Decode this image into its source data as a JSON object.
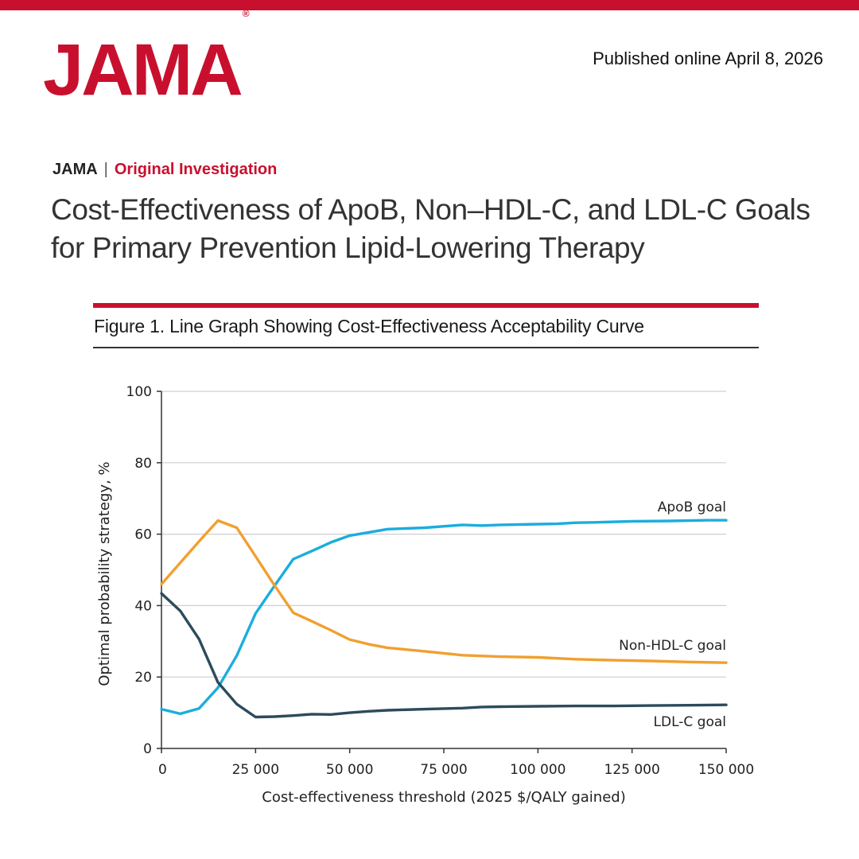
{
  "header": {
    "logo_text": "JAMA",
    "logo_mark": "®",
    "published": "Published online April 8, 2026",
    "brand_color": "#c8102e"
  },
  "article": {
    "journal": "JAMA",
    "separator": "|",
    "section": "Original Investigation",
    "title": "Cost-Effectiveness of ApoB, Non–HDL-C, and LDL-C Goals for Primary Prevention Lipid-Lowering Therapy"
  },
  "figure": {
    "caption": "Figure 1. Line Graph Showing Cost-Effectiveness Acceptability Curve"
  },
  "chart_data": {
    "type": "line",
    "title": "Line Graph Showing Cost-Effectiveness Acceptability Curve",
    "xlabel": "Cost-effectiveness threshold (2025 $/QALY gained)",
    "ylabel": "Optimal probability strategy, %",
    "xlim": [
      0,
      150000
    ],
    "ylim": [
      0,
      100
    ],
    "x_ticks": [
      0,
      25000,
      50000,
      75000,
      100000,
      125000,
      150000
    ],
    "x_tick_labels": [
      "0",
      "25 000",
      "50 000",
      "75 000",
      "100 000",
      "125 000",
      "150 000"
    ],
    "y_ticks": [
      0,
      20,
      40,
      60,
      80,
      100
    ],
    "y_tick_labels": [
      "0",
      "20",
      "40",
      "60",
      "80",
      "100"
    ],
    "grid": "horizontal",
    "series": [
      {
        "name": "ApoB goal",
        "color": "#1badde",
        "x": [
          0,
          5000,
          10000,
          15000,
          20000,
          25000,
          30000,
          35000,
          40000,
          45000,
          50000,
          55000,
          60000,
          70000,
          80000,
          85000,
          90000,
          100000,
          105000,
          110000,
          115000,
          125000,
          135000,
          145000,
          150000
        ],
        "values": [
          11,
          9.7,
          11.2,
          17,
          26,
          37.8,
          45.5,
          53,
          55.3,
          57.7,
          59.6,
          60.5,
          61.4,
          61.8,
          62.6,
          62.4,
          62.6,
          62.8,
          62.9,
          63.2,
          63.3,
          63.6,
          63.7,
          63.9,
          63.9
        ]
      },
      {
        "name": "Non-HDL-C goal",
        "color": "#f0a030",
        "x": [
          0,
          5000,
          10000,
          15000,
          20000,
          25000,
          30000,
          35000,
          40000,
          45000,
          50000,
          55000,
          60000,
          70000,
          80000,
          90000,
          100000,
          110000,
          120000,
          130000,
          140000,
          150000
        ],
        "values": [
          46,
          52,
          58,
          63.8,
          61.8,
          53.8,
          45.7,
          38,
          35.6,
          33.1,
          30.5,
          29.2,
          28.2,
          27.2,
          26.1,
          25.7,
          25.5,
          25,
          24.7,
          24.5,
          24.2,
          24
        ]
      },
      {
        "name": "LDL-C goal",
        "color": "#2c4b5c",
        "x": [
          0,
          5000,
          10000,
          15000,
          20000,
          25000,
          30000,
          35000,
          40000,
          45000,
          50000,
          55000,
          60000,
          70000,
          80000,
          85000,
          90000,
          100000,
          110000,
          120000,
          130000,
          140000,
          150000
        ],
        "values": [
          43.4,
          38.5,
          30.6,
          18.5,
          12.4,
          8.8,
          8.9,
          9.2,
          9.6,
          9.5,
          10,
          10.4,
          10.7,
          11,
          11.3,
          11.6,
          11.7,
          11.8,
          11.9,
          11.9,
          12,
          12.1,
          12.2
        ]
      }
    ]
  }
}
